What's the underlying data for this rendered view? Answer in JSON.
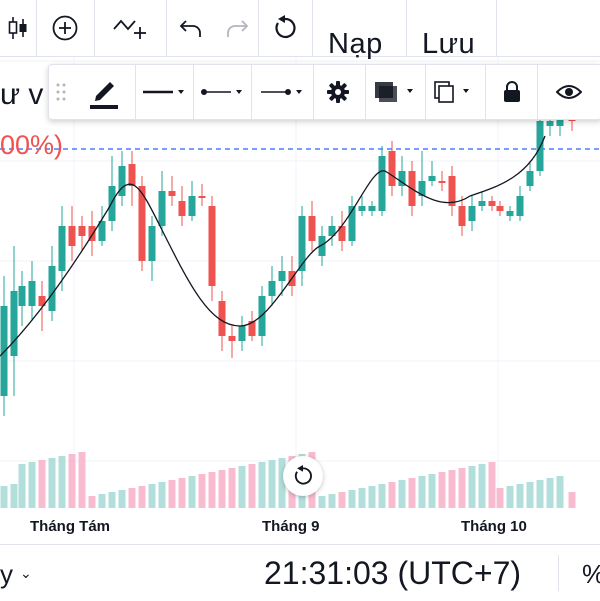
{
  "colors": {
    "up": "#26a69a",
    "down": "#ef5350",
    "up_volume": "#b2dfdb",
    "down_volume": "#f8bbd0",
    "ma_line": "#131722",
    "price_line": "#2962ff"
  },
  "toolbar": {
    "icons": [
      "candles-icon",
      "add-indicator-icon",
      "compare-icon",
      "undo-icon",
      "redo-icon",
      "reset-icon"
    ],
    "nap_label": "Nạp",
    "luu_label": "Lưu"
  },
  "drawing_toolbar": {
    "icons": [
      "pencil-icon",
      "line-style-icon",
      "line-width-icon",
      "line-end-icon",
      "settings-icon",
      "fill-icon",
      "clone-icon",
      "lock-icon",
      "visibility-icon"
    ]
  },
  "chart": {
    "left_label": "ư v",
    "percent_label": "00%)",
    "x_labels": [
      "Tháng Tám",
      "Tháng 9",
      "Tháng 10"
    ]
  },
  "bottom": {
    "left_text": "y",
    "time": "21:31:03 (UTC+7)",
    "right_text": "%"
  }
}
